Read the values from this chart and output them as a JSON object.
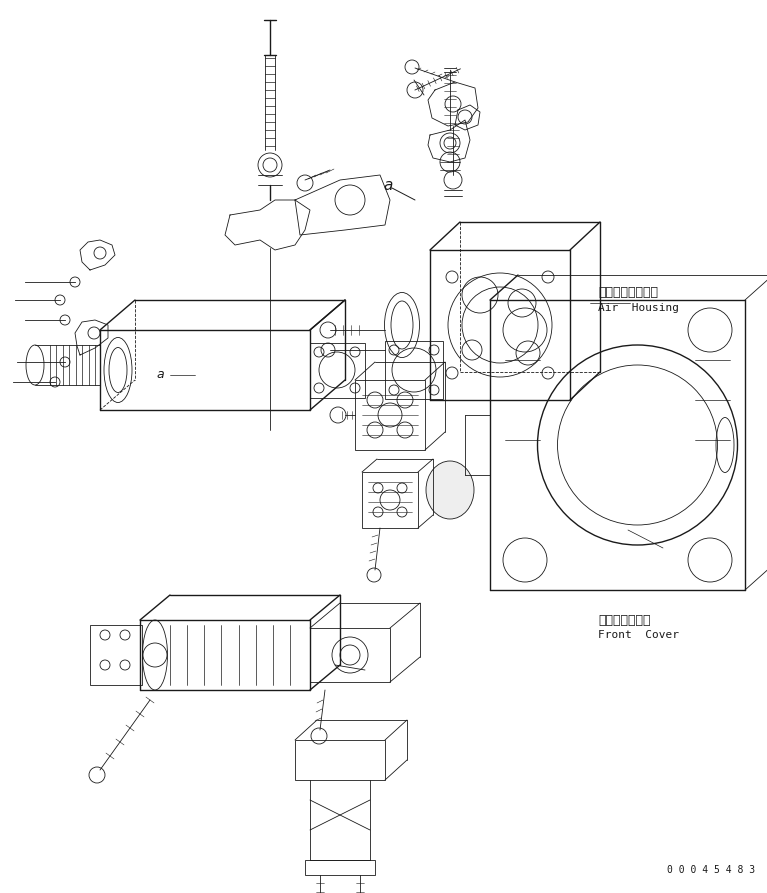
{
  "background_color": "#ffffff",
  "line_color": "#1a1a1a",
  "text_color": "#1a1a1a",
  "fig_width": 7.67,
  "fig_height": 8.93,
  "dpi": 100,
  "label_air_housing_jp": "エアーハウジング",
  "label_air_housing_en": "Air  Housing",
  "label_front_cover_jp": "フロントカバー",
  "label_front_cover_en": "Front  Cover",
  "label_a1": "a",
  "label_a2": "a",
  "serial_number": "0 0 0 4 5 4 8 3",
  "img_extent": [
    0,
    767,
    0,
    893
  ]
}
